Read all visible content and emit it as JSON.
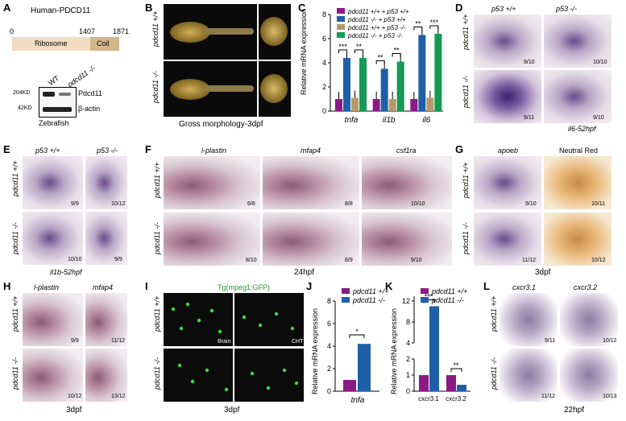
{
  "panels": {
    "A": "A",
    "B": "B",
    "C": "C",
    "D": "D",
    "E": "E",
    "F": "F",
    "G": "G",
    "H": "H",
    "I": "I",
    "J": "J",
    "K": "K",
    "L": "L"
  },
  "A": {
    "title": "Human-PDCD11",
    "pos0": "0",
    "pos1": "1407",
    "pos2": "1871",
    "dom1": "Ribosome",
    "dom2": "Coil",
    "wt": "WT",
    "ko": "pdcd11 -/-",
    "kd204": "204KD",
    "kd42": "42KD",
    "pdcd11": "Pdcd11",
    "actin": "β-actin",
    "species": "Zebrafish"
  },
  "B": {
    "row1": "pdcd11 +/+",
    "row2": "pdcd11 -/-",
    "caption": "Gross morphology-3dpf"
  },
  "C": {
    "ylabel": "Relative mRNA expression",
    "legend": [
      "pdcd11 +/+ + p53 +/+",
      "pdcd11 -/- + p53 +/+",
      "pdcd11 +/+ + p53 -/-",
      "pdcd11 -/- + p53 -/-"
    ],
    "sig": [
      "***",
      "**",
      "**",
      "**",
      "**",
      "***"
    ]
  },
  "D": {
    "col1": "p53 +/+",
    "col2": "p53 -/-",
    "row1": "pdcd11 +/+",
    "row2": "pdcd11 -/-",
    "counts": [
      "9/10",
      "10/10",
      "9/11",
      "9/10"
    ],
    "caption": "il6-52hpf"
  },
  "E": {
    "col1": "p53 +/+",
    "col2": "p53 -/-",
    "row1": "pdcd11 +/+",
    "row2": "pdcd11 -/-",
    "counts": [
      "9/9",
      "10/12",
      "10/10",
      "9/9"
    ],
    "caption": "il1b-52hpf"
  },
  "F": {
    "col1": "l-plastin",
    "col2": "mfap4",
    "col3": "csf1ra",
    "row1": "pdcd11 +/+",
    "row2": "pdcd11 -/-",
    "counts": [
      "6/8",
      "8/8",
      "10/10",
      "8/10",
      "8/9",
      "9/10"
    ],
    "caption": "24hpf"
  },
  "G": {
    "col1": "apoeb",
    "col2": "Neutral Red",
    "row1": "pdcd11 +/+",
    "row2": "pdcd11 -/-",
    "counts": [
      "9/10",
      "10/11",
      "11/12",
      "10/12"
    ],
    "caption": "3dpf"
  },
  "H": {
    "col1": "l-plastin",
    "col2": "mfap4",
    "row1": "pdcd11 +/+",
    "row2": "pdcd11 -/-",
    "counts": [
      "9/9",
      "11/12",
      "10/12",
      "13/12"
    ],
    "caption": "3dpf"
  },
  "I": {
    "title": "Tg(mpeg1:GFP)",
    "row1": "pdcd11 +/+",
    "row2": "pdcd11 -/-",
    "brain": "Brain",
    "cht": "CHT",
    "caption": "3dpf"
  },
  "J": {
    "ylabel": "Relative mRNA expression",
    "legend": [
      "pdcd11 +/+",
      "pdcd11 -/-"
    ],
    "xlabel": "tnfa",
    "sig": "*"
  },
  "K": {
    "ylabel": "Relative mRNA expression",
    "legend": [
      "pdcd11 +/+",
      "pdcd11 -/-"
    ],
    "sig": [
      "***",
      "**"
    ]
  },
  "L": {
    "col1": "cxcr3.1",
    "col2": "cxcr3.2",
    "row1": "pdcd11 +/+",
    "row2": "pdcd11 -/-",
    "counts": [
      "9/11",
      "10/12",
      "11/12",
      "10/13"
    ],
    "caption": "22hpf"
  },
  "colors": {
    "purple": "#8b1a84",
    "blue": "#1f5fa8",
    "tan": "#b59a6a",
    "green": "#169a55"
  },
  "chart_data": [
    {
      "type": "bar",
      "categories": [
        "tnfa",
        "il1b",
        "il6"
      ],
      "series": [
        {
          "name": "pdcd11 +/+ + p53 +/+",
          "values": [
            1.0,
            1.0,
            1.0
          ]
        },
        {
          "name": "pdcd11 -/- + p53 +/+",
          "values": [
            4.4,
            3.5,
            6.3
          ]
        },
        {
          "name": "pdcd11 +/+ + p53 -/-",
          "values": [
            1.1,
            1.0,
            1.1
          ]
        },
        {
          "name": "pdcd11 -/- + p53 -/-",
          "values": [
            4.4,
            4.1,
            6.4
          ]
        }
      ],
      "ylim": [
        0,
        8
      ],
      "yticks": [
        0,
        2,
        4,
        6,
        8
      ],
      "ylabel": "Relative mRNA expression"
    },
    {
      "type": "bar",
      "categories": [
        "tnfa"
      ],
      "series": [
        {
          "name": "pdcd11 +/+",
          "values": [
            1.0
          ]
        },
        {
          "name": "pdcd11 -/-",
          "values": [
            4.2
          ]
        }
      ],
      "ylim": [
        0,
        8
      ],
      "yticks": [
        0,
        2,
        4,
        6,
        8
      ],
      "ylabel": "Relative mRNA expression"
    },
    {
      "type": "bar",
      "categories": [
        "cxcr3.1",
        "cxcr3.2"
      ],
      "series": [
        {
          "name": "pdcd11 +/+",
          "values": [
            1.0,
            1.0
          ]
        },
        {
          "name": "pdcd11 -/-",
          "values": [
            11.0,
            0.4
          ]
        }
      ],
      "ylim": [
        0,
        14
      ],
      "yticks": [
        0,
        1,
        2,
        4,
        8,
        12
      ],
      "ylabel": "Relative mRNA expression"
    }
  ]
}
